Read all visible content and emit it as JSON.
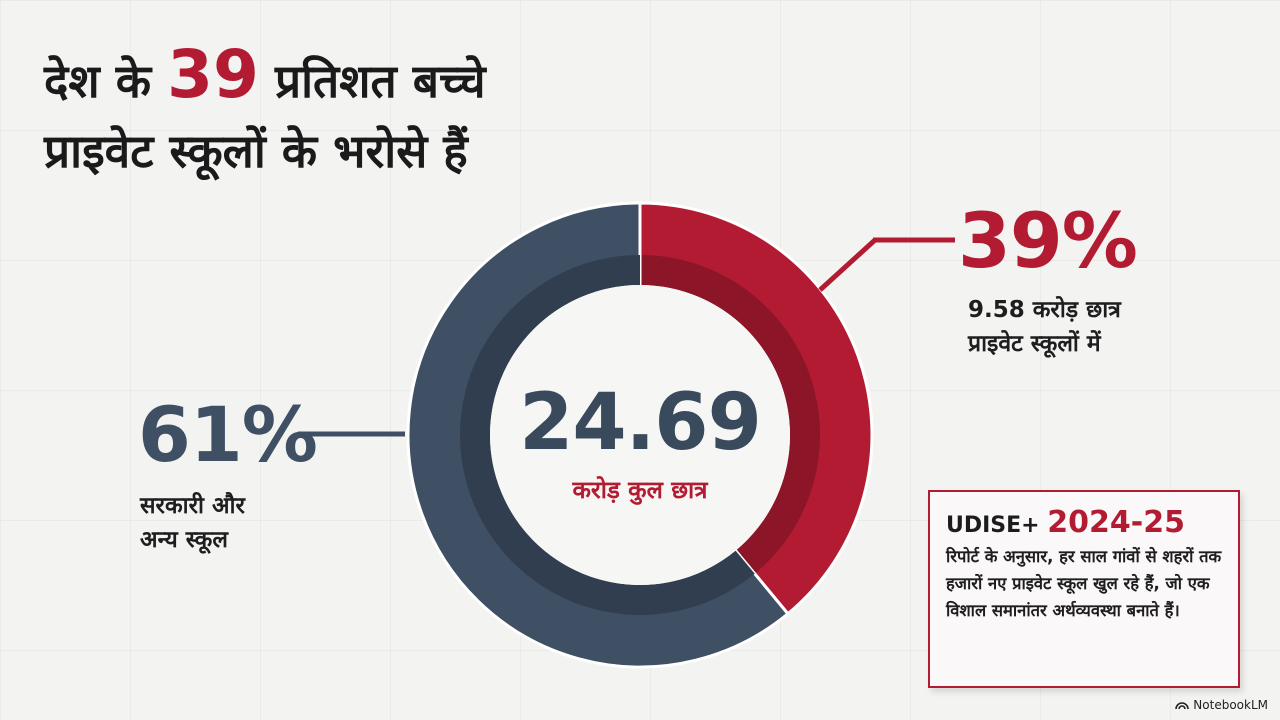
{
  "title": {
    "part1": "देश के",
    "highlight": "39",
    "part2": "प्रतिशत बच्चे",
    "line2": "प्राइवेट स्कूलों के भरोसे हैं"
  },
  "chart_data": {
    "type": "pie",
    "donut": true,
    "slices": [
      {
        "label": "प्राइवेट स्कूलों में",
        "value": 39,
        "color": "#b31b32"
      },
      {
        "label": "सरकारी और अन्य स्कूल",
        "value": 61,
        "color": "#3f5065"
      }
    ],
    "center_value": "24.69",
    "center_label": "करोड़ कुल छात्र"
  },
  "private": {
    "percent": "39%",
    "desc_line1": "9.58 करोड़ छात्र",
    "desc_line2": "प्राइवेट स्कूलों में"
  },
  "government": {
    "percent": "61%",
    "desc_line1": "सरकारी और",
    "desc_line2": "अन्य स्कूल"
  },
  "info_box": {
    "label": "UDISE+",
    "year": "2024-25",
    "text": "रिपोर्ट के अनुसार, हर साल गांवों से शहरों तक हजारों नए प्राइवेट स्कूल खुल रहे हैं, जो एक विशाल समानांतर अर्थव्यवस्था बनाते हैं।"
  },
  "brand": {
    "name": "NotebookLM",
    "icon": "notebooklm-icon"
  },
  "colors": {
    "accent": "#b31b32",
    "slate": "#3f5065"
  }
}
